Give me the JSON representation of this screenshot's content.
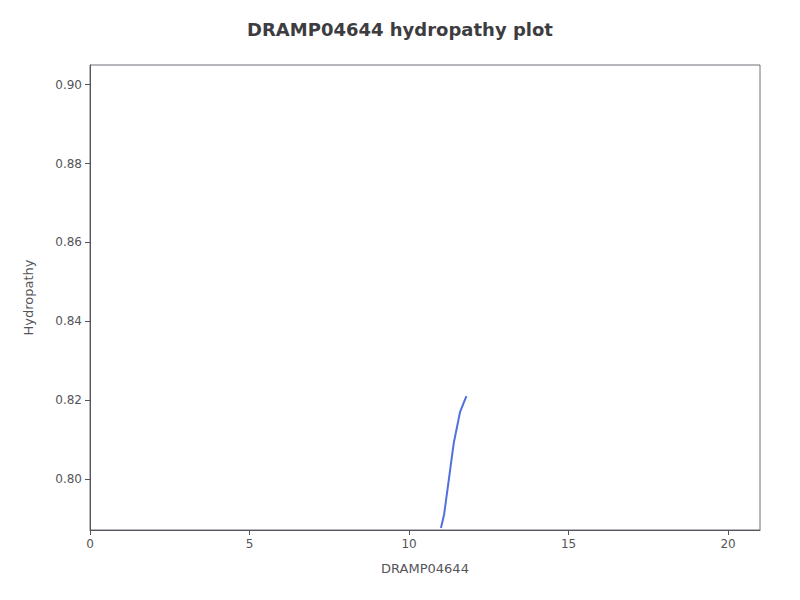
{
  "chart_data": {
    "type": "line",
    "title": "DRAMP04644 hydropathy plot",
    "xlabel": "DRAMP04644",
    "ylabel": "Hydropathy",
    "x": [
      11.0,
      11.1,
      11.15,
      11.2,
      11.25,
      11.3,
      11.35,
      11.4,
      11.45,
      11.5,
      11.55,
      11.6,
      11.65,
      11.7,
      11.75,
      11.8
    ],
    "values": [
      0.7875,
      0.791,
      0.794,
      0.797,
      0.8,
      0.803,
      0.806,
      0.809,
      0.811,
      0.813,
      0.815,
      0.817,
      0.818,
      0.819,
      0.82,
      0.821
    ],
    "xlim": [
      0,
      21
    ],
    "ylim": [
      0.787,
      0.905
    ],
    "xticks": [
      0,
      5,
      10,
      15,
      20
    ],
    "yticks": [
      {
        "value": 0.8,
        "label": "0.80"
      },
      0.82,
      0.84,
      0.86,
      0.88,
      {
        "value": 0.9,
        "label": "0.90"
      }
    ],
    "grid": false
  }
}
